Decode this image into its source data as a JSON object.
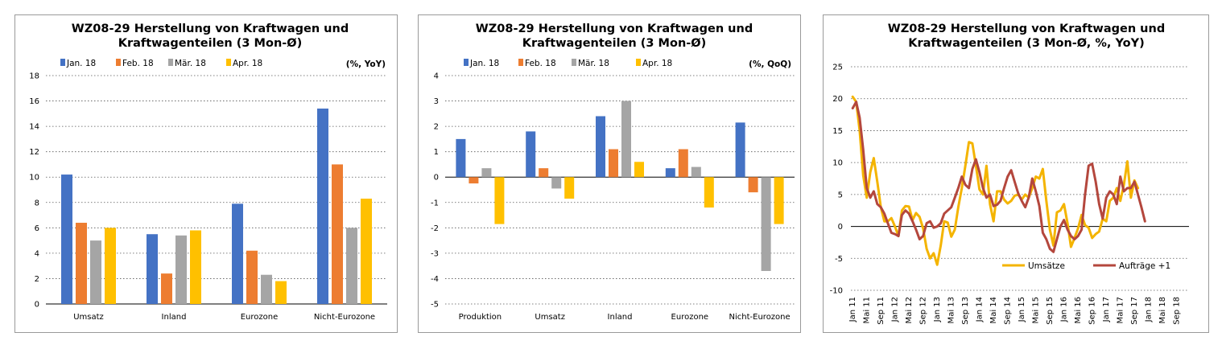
{
  "colors": {
    "jan": "#4472C4",
    "feb": "#ED7D31",
    "mar": "#A5A5A5",
    "apr": "#FFC000",
    "umsaetze": "#F4B400",
    "auftraege": "#B4473D"
  },
  "chart_data": [
    {
      "type": "bar",
      "title_line1": "WZ08-29 Herstellung von Kraftwagen und",
      "title_line2": "Kraftwagenteilen (3 Mon-Ø)",
      "unit_label": "(%, YoY)",
      "categories": [
        "Umsatz",
        "Inland",
        "Eurozone",
        "Nicht-Eurozone"
      ],
      "series": [
        {
          "name": "Jan. 18",
          "values": [
            10.2,
            5.5,
            7.9,
            15.4
          ]
        },
        {
          "name": "Feb. 18",
          "values": [
            6.4,
            2.4,
            4.2,
            11.0
          ]
        },
        {
          "name": "Mär. 18",
          "values": [
            5.0,
            5.4,
            2.3,
            6.0
          ]
        },
        {
          "name": "Apr. 18",
          "values": [
            6.0,
            5.8,
            1.8,
            8.3
          ]
        }
      ],
      "ylim": [
        0,
        18
      ],
      "yticks": [
        "0",
        "2",
        "4",
        "6",
        "8",
        "10",
        "12",
        "14",
        "16",
        "18"
      ]
    },
    {
      "type": "bar",
      "title_line1": "WZ08-29 Herstellung von Kraftwagen und",
      "title_line2": "Kraftwagenteilen (3 Mon-Ø)",
      "unit_label": "(%, QoQ)",
      "categories": [
        "Produktion",
        "Umsatz",
        "Inland",
        "Eurozone",
        "Nicht-Eurozone"
      ],
      "series": [
        {
          "name": "Jan. 18",
          "values": [
            1.5,
            1.8,
            2.4,
            0.35,
            2.15
          ]
        },
        {
          "name": "Feb. 18",
          "values": [
            -0.25,
            0.35,
            1.1,
            1.1,
            -0.6
          ]
        },
        {
          "name": "Mär. 18",
          "values": [
            0.35,
            -0.45,
            3.0,
            0.4,
            -3.7
          ]
        },
        {
          "name": "Apr. 18",
          "values": [
            -1.85,
            -0.85,
            0.6,
            -1.2,
            -1.85
          ]
        }
      ],
      "ylim": [
        -5,
        4
      ],
      "yticks": [
        "-5",
        "-4",
        "-3",
        "-2",
        "-1",
        "0",
        "1",
        "2",
        "3",
        "4"
      ]
    },
    {
      "type": "line",
      "title_line1": "WZ08-29 Herstellung von Kraftwagen und",
      "title_line2": "Kraftwagenteilen (3 Mon-Ø, %, YoY)",
      "xticks": [
        "Jan 11",
        "Mai 11",
        "Sep 11",
        "Jan 12",
        "Mai 12",
        "Sep 12",
        "Jan 13",
        "Mai 13",
        "Sep 13",
        "Jan 14",
        "Mai 14",
        "Sep 14",
        "Jan 15",
        "Mai 15",
        "Sep 15",
        "Jan 16",
        "Mai 16",
        "Sep 16",
        "Jan 17",
        "Mai 17",
        "Sep 17",
        "Jan 18",
        "Mai 18",
        "Sep 18"
      ],
      "ylim": [
        -10,
        25
      ],
      "yticks": [
        "-10",
        "-5",
        "0",
        "5",
        "10",
        "15",
        "20",
        "25"
      ],
      "series": [
        {
          "name": "Umsätze",
          "values": [
            20.3,
            19.5,
            15,
            8,
            4.5,
            8.5,
            10.7,
            7,
            3,
            0.8,
            0.8,
            1.3,
            0,
            -1.5,
            2.5,
            3.2,
            3.1,
            1,
            2.1,
            1.5,
            -0.3,
            -3.5,
            -5,
            -4.2,
            -6,
            -3,
            0.8,
            0.6,
            -1.6,
            -0.5,
            3,
            6,
            9.5,
            13.2,
            13,
            9.5,
            5.8,
            5,
            9.5,
            3.5,
            0.8,
            5.5,
            5.5,
            4.2,
            3.6,
            4,
            4.8,
            5,
            4.2,
            5,
            4.5,
            6,
            7.8,
            7.5,
            9,
            4,
            -0.5,
            -3,
            2.2,
            2.5,
            3.5,
            0.5,
            -3.2,
            -1.8,
            -0.3,
            1.8,
            0.2,
            -0.2,
            -1.8,
            -1.2,
            -0.8,
            1.2,
            0.8,
            4,
            4.5,
            6,
            4,
            6.5,
            10.2,
            4.5,
            7.2,
            6
          ]
        },
        {
          "name": "Aufträge +1",
          "values": [
            18.5,
            19.5,
            17,
            12,
            6,
            4.5,
            5.5,
            3.5,
            3,
            2,
            0.5,
            -1,
            -1.2,
            -1.5,
            1.8,
            2.5,
            2,
            0.8,
            -0.5,
            -2,
            -1.5,
            0.5,
            0.8,
            -0.2,
            0,
            0.5,
            2,
            2.5,
            3,
            4.5,
            6,
            7.8,
            6.5,
            6,
            9,
            10.5,
            8.5,
            6,
            4.5,
            5,
            3.2,
            3.4,
            4,
            6,
            7.8,
            8.8,
            7,
            5.2,
            4,
            3,
            4.5,
            7.5,
            5.5,
            3.2,
            -1,
            -2,
            -3.5,
            -4,
            -2,
            0,
            1,
            -0.5,
            -1.5,
            -2,
            -1.5,
            -0.5,
            5,
            9.5,
            9.8,
            7,
            3.5,
            1.2,
            4.5,
            5.5,
            5,
            3.5,
            7.8,
            5.5,
            6,
            6,
            7,
            5,
            3,
            0.8
          ]
        }
      ]
    }
  ]
}
